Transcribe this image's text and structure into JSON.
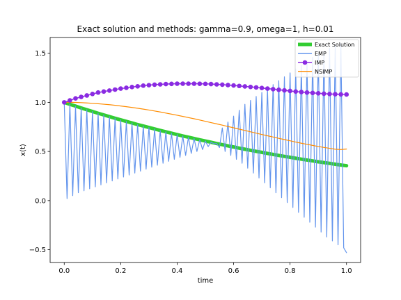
{
  "chart_data": {
    "type": "line",
    "title": "Exact solution and methods: gamma=0.9, omega=1, h=0.01",
    "xlabel": "time",
    "ylabel": "x(t)",
    "xlim": [
      -0.05,
      1.05
    ],
    "ylim": [
      -0.63,
      1.66
    ],
    "xticks": [
      0.0,
      0.2,
      0.4,
      0.6,
      0.8,
      1.0
    ],
    "xtick_labels": [
      "0.0",
      "0.2",
      "0.4",
      "0.6",
      "0.8",
      "1.0"
    ],
    "yticks": [
      -0.5,
      0.0,
      0.5,
      1.0,
      1.5
    ],
    "ytick_labels": [
      "−0.5",
      "0.0",
      "0.5",
      "1.0",
      "1.5"
    ],
    "grid": false,
    "legend_position": "upper-right",
    "x": [
      0.0,
      0.02,
      0.04,
      0.06,
      0.08,
      0.1,
      0.12,
      0.14,
      0.16,
      0.18,
      0.2,
      0.22,
      0.24,
      0.26,
      0.28,
      0.3,
      0.32,
      0.34,
      0.36,
      0.38,
      0.4,
      0.42,
      0.44,
      0.46,
      0.48,
      0.5,
      0.52,
      0.54,
      0.56,
      0.58,
      0.6,
      0.62,
      0.64,
      0.66,
      0.68,
      0.7,
      0.72,
      0.74,
      0.76,
      0.78,
      0.8,
      0.82,
      0.84,
      0.86,
      0.88,
      0.9,
      0.92,
      0.94,
      0.96,
      0.98,
      1.0
    ],
    "series": [
      {
        "name": "Exact Solution",
        "color": "#32cd32",
        "style": "thick-line",
        "values": [
          1.0,
          0.98,
          0.962,
          0.943,
          0.925,
          0.907,
          0.889,
          0.872,
          0.855,
          0.838,
          0.822,
          0.806,
          0.79,
          0.774,
          0.759,
          0.744,
          0.729,
          0.714,
          0.7,
          0.686,
          0.672,
          0.658,
          0.645,
          0.632,
          0.619,
          0.606,
          0.594,
          0.581,
          0.569,
          0.557,
          0.546,
          0.534,
          0.523,
          0.512,
          0.501,
          0.491,
          0.48,
          0.47,
          0.46,
          0.45,
          0.441,
          0.431,
          0.422,
          0.413,
          0.404,
          0.395,
          0.387,
          0.379,
          0.37,
          0.362,
          0.355
        ]
      },
      {
        "name": "EMP",
        "color": "#6495ed",
        "style": "line",
        "x": [
          0.0,
          0.01,
          0.02,
          0.03,
          0.04,
          0.05,
          0.06,
          0.07,
          0.08,
          0.09,
          0.1,
          0.11,
          0.12,
          0.13,
          0.14,
          0.15,
          0.16,
          0.17,
          0.18,
          0.19,
          0.2,
          0.21,
          0.22,
          0.23,
          0.24,
          0.25,
          0.26,
          0.27,
          0.28,
          0.29,
          0.3,
          0.31,
          0.32,
          0.33,
          0.34,
          0.35,
          0.36,
          0.37,
          0.38,
          0.39,
          0.4,
          0.41,
          0.42,
          0.43,
          0.44,
          0.45,
          0.46,
          0.47,
          0.48,
          0.49,
          0.5,
          0.51,
          0.52,
          0.53,
          0.54,
          0.55,
          0.56,
          0.57,
          0.58,
          0.59,
          0.6,
          0.61,
          0.62,
          0.63,
          0.64,
          0.65,
          0.66,
          0.67,
          0.68,
          0.69,
          0.7,
          0.71,
          0.72,
          0.73,
          0.74,
          0.75,
          0.76,
          0.77,
          0.78,
          0.79,
          0.8,
          0.81,
          0.82,
          0.83,
          0.84,
          0.85,
          0.86,
          0.87,
          0.88,
          0.89,
          0.9,
          0.91,
          0.92,
          0.93,
          0.94,
          0.95,
          0.96,
          0.97,
          0.98,
          0.99,
          1.0
        ],
        "values": [
          1.0,
          0.02,
          0.98,
          0.05,
          0.96,
          0.08,
          0.943,
          0.1,
          0.925,
          0.12,
          0.907,
          0.14,
          0.889,
          0.16,
          0.872,
          0.18,
          0.855,
          0.2,
          0.838,
          0.22,
          0.822,
          0.24,
          0.806,
          0.26,
          0.79,
          0.28,
          0.774,
          0.3,
          0.759,
          0.32,
          0.744,
          0.34,
          0.729,
          0.36,
          0.714,
          0.38,
          0.7,
          0.4,
          0.686,
          0.42,
          0.672,
          0.44,
          0.658,
          0.46,
          0.645,
          0.48,
          0.632,
          0.5,
          0.619,
          0.52,
          0.606,
          0.55,
          0.594,
          0.58,
          0.581,
          0.54,
          0.74,
          0.5,
          0.8,
          0.46,
          0.86,
          0.42,
          0.92,
          0.38,
          0.98,
          0.33,
          1.02,
          0.28,
          1.06,
          0.23,
          1.1,
          0.18,
          1.14,
          0.13,
          1.18,
          0.08,
          1.22,
          0.03,
          1.26,
          -0.02,
          1.3,
          -0.07,
          1.34,
          -0.12,
          1.38,
          -0.17,
          1.42,
          -0.22,
          1.46,
          -0.27,
          1.49,
          -0.32,
          1.52,
          -0.37,
          1.55,
          -0.41,
          1.58,
          -0.45,
          1.6,
          -0.48,
          -0.53
        ]
      },
      {
        "name": "IMP",
        "color": "#8a2be2",
        "style": "line-markers",
        "values": [
          1.0,
          1.02,
          1.04,
          1.055,
          1.07,
          1.085,
          1.1,
          1.11,
          1.12,
          1.13,
          1.14,
          1.148,
          1.156,
          1.163,
          1.17,
          1.175,
          1.18,
          1.183,
          1.186,
          1.188,
          1.19,
          1.19,
          1.19,
          1.19,
          1.189,
          1.188,
          1.186,
          1.183,
          1.18,
          1.176,
          1.172,
          1.167,
          1.162,
          1.157,
          1.152,
          1.146,
          1.14,
          1.134,
          1.128,
          1.122,
          1.116,
          1.11,
          1.105,
          1.1,
          1.096,
          1.092,
          1.088,
          1.085,
          1.083,
          1.081,
          1.08
        ]
      },
      {
        "name": "NSIMP",
        "color": "#ff8c00",
        "style": "line",
        "values": [
          1.0,
          1.0,
          0.999,
          0.997,
          0.994,
          0.99,
          0.986,
          0.981,
          0.976,
          0.97,
          0.963,
          0.956,
          0.948,
          0.94,
          0.931,
          0.922,
          0.912,
          0.902,
          0.891,
          0.88,
          0.869,
          0.857,
          0.845,
          0.833,
          0.82,
          0.807,
          0.794,
          0.781,
          0.768,
          0.754,
          0.741,
          0.727,
          0.714,
          0.7,
          0.687,
          0.673,
          0.66,
          0.647,
          0.634,
          0.621,
          0.609,
          0.596,
          0.584,
          0.573,
          0.562,
          0.551,
          0.541,
          0.532,
          0.523,
          0.52,
          0.525
        ]
      }
    ]
  }
}
